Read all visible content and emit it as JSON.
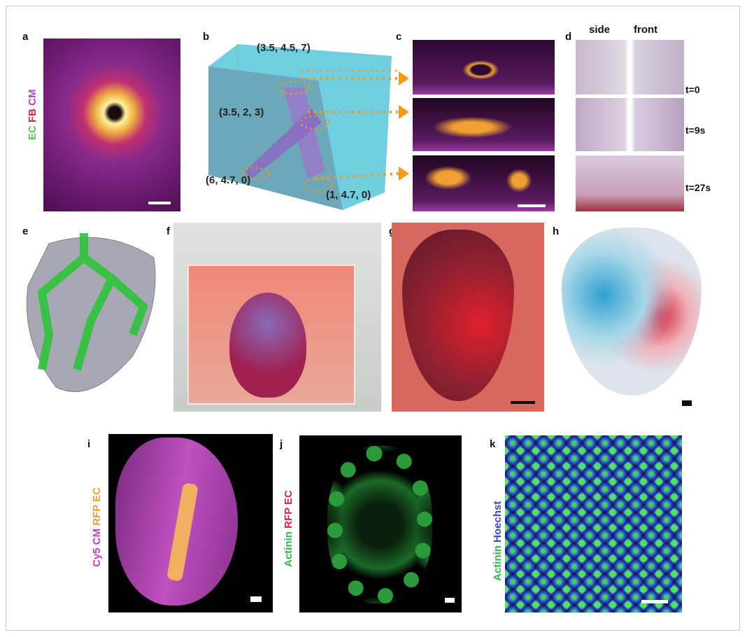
{
  "panels": {
    "a": {
      "label": "a",
      "stain": [
        "EC",
        "FB",
        "CM"
      ],
      "stain_colors": [
        "#4fd14f",
        "#e8203a",
        "#c040c0"
      ]
    },
    "b": {
      "label": "b",
      "coords": [
        "(3.5, 4.5, 7)",
        "(3.5, 2, 3)",
        "(6, 4.7, 0)",
        "(1, 4.7, 0)"
      ]
    },
    "c": {
      "label": "c"
    },
    "d": {
      "label": "d",
      "headers": [
        "side",
        "front"
      ],
      "times": [
        "t=0",
        "t=9s",
        "t=27s"
      ]
    },
    "e": {
      "label": "e"
    },
    "f": {
      "label": "f"
    },
    "g": {
      "label": "g"
    },
    "h": {
      "label": "h"
    },
    "i": {
      "label": "i",
      "stain": [
        "Cy5 CM",
        "RFP EC"
      ],
      "stain_colors": [
        "#c040c0",
        "#f0a030"
      ]
    },
    "j": {
      "label": "j",
      "stain": [
        "Actinin",
        "RFP EC"
      ],
      "stain_colors": [
        "#2eb84a",
        "#e8203a"
      ]
    },
    "k": {
      "label": "k",
      "stain": [
        "Actinin",
        "Hoechst"
      ],
      "stain_colors": [
        "#2eb84a",
        "#3b46c8"
      ]
    }
  },
  "arrow_color": "#f29a1a"
}
